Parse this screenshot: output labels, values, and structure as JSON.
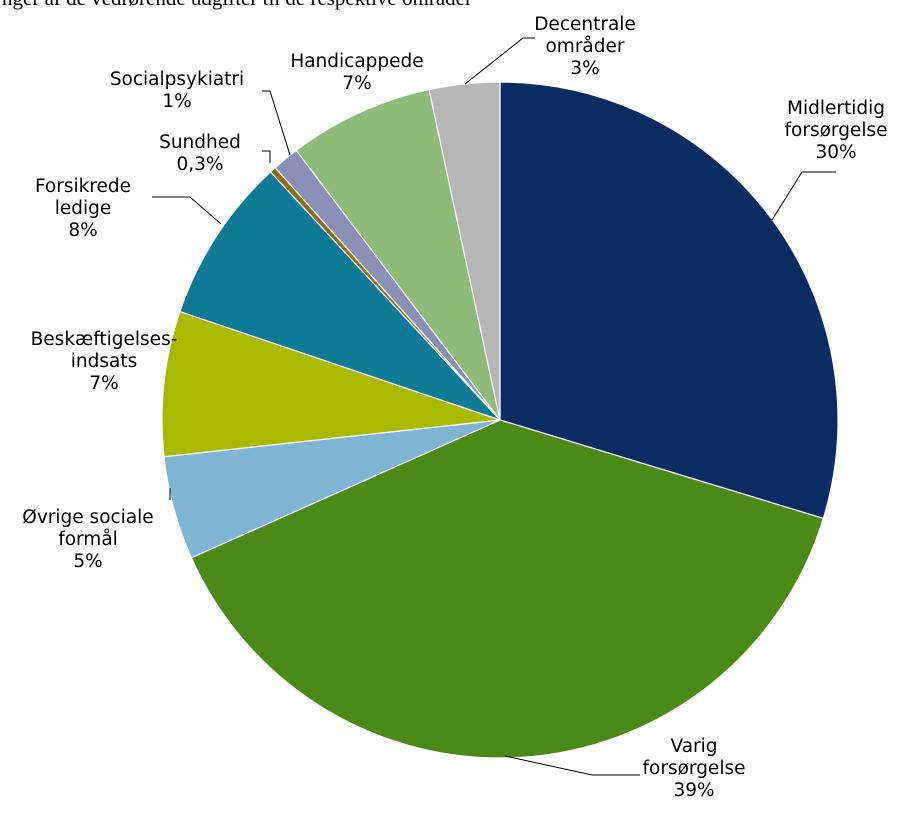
{
  "heading": "nger af de vedrørende udgifter til de respektive områder",
  "chart_data": {
    "type": "pie",
    "start": "12 o'clock",
    "direction": "clockwise",
    "slices": [
      {
        "lines": [
          "Midlertidig",
          "forsørgelse",
          "30%"
        ],
        "value": 30,
        "color": "#0b2c63"
      },
      {
        "lines": [
          "Varig",
          "forsørgelse",
          "39%"
        ],
        "value": 39,
        "color": "#4b8a18"
      },
      {
        "lines": [
          "Øvrige sociale",
          "formål",
          "5%"
        ],
        "value": 5,
        "color": "#7db5d2"
      },
      {
        "lines": [
          "Beskæftigelses-",
          "indsats",
          "7%"
        ],
        "value": 7,
        "color": "#a9b900"
      },
      {
        "lines": [
          "Forsikrede",
          "ledige",
          "8%"
        ],
        "value": 8,
        "color": "#0e7a96"
      },
      {
        "lines": [
          "Sundhed",
          "0,3%"
        ],
        "value": 0.3,
        "color": "#8a6d14"
      },
      {
        "lines": [
          "Socialpsykiatri",
          "1%"
        ],
        "value": 1.3,
        "color": "#8a8fb6"
      },
      {
        "lines": [
          "Handicappede",
          "7%"
        ],
        "value": 7,
        "color": "#8fbb78"
      },
      {
        "lines": [
          "Decentrale",
          "områder",
          "3%"
        ],
        "value": 3.4,
        "color": "#b6b6b6"
      }
    ]
  }
}
